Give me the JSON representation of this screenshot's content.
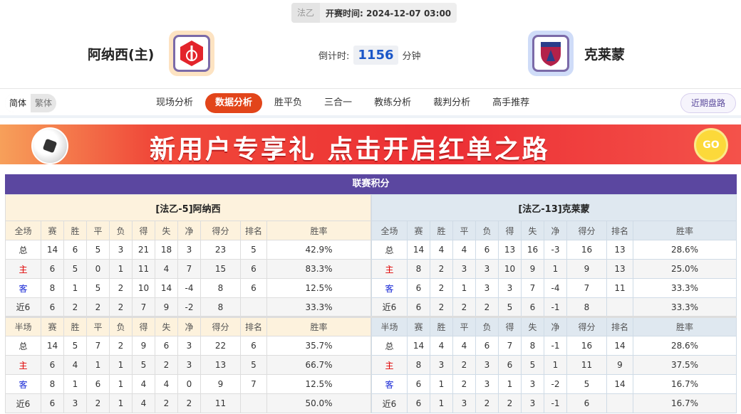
{
  "match": {
    "league": "法乙",
    "kickoff_label": "开赛时间:",
    "kickoff": "2024-12-07 03:00",
    "home": "阿纳西(主)",
    "away": "克莱蒙",
    "countdown_label": "倒计时:",
    "countdown": "1156",
    "countdown_unit": "分钟"
  },
  "lang": {
    "simplified": "简体",
    "traditional": "繁体"
  },
  "tabs": [
    "现场分析",
    "数据分析",
    "胜平负",
    "三合一",
    "教练分析",
    "裁判分析",
    "高手推荐"
  ],
  "active_tab": "数据分析",
  "recent_button": "近期盘路",
  "banner": {
    "text": "新用户专享礼 点击开启红单之路",
    "go": "GO"
  },
  "section_title": "联赛积分",
  "columns_full": [
    "全场",
    "赛",
    "胜",
    "平",
    "负",
    "得",
    "失",
    "净",
    "得分",
    "排名",
    "胜率"
  ],
  "columns_half": [
    "半场",
    "赛",
    "胜",
    "平",
    "负",
    "得",
    "失",
    "净",
    "得分",
    "排名",
    "胜率"
  ],
  "home_table": {
    "title": "[法乙-5]阿纳西",
    "full": [
      [
        "总",
        "14",
        "6",
        "5",
        "3",
        "21",
        "18",
        "3",
        "23",
        "5",
        "42.9%"
      ],
      [
        "主",
        "6",
        "5",
        "0",
        "1",
        "11",
        "4",
        "7",
        "15",
        "6",
        "83.3%"
      ],
      [
        "客",
        "8",
        "1",
        "5",
        "2",
        "10",
        "14",
        "-4",
        "8",
        "6",
        "12.5%"
      ],
      [
        "近6",
        "6",
        "2",
        "2",
        "2",
        "7",
        "9",
        "-2",
        "8",
        "",
        "33.3%"
      ]
    ],
    "half": [
      [
        "总",
        "14",
        "5",
        "7",
        "2",
        "9",
        "6",
        "3",
        "22",
        "6",
        "35.7%"
      ],
      [
        "主",
        "6",
        "4",
        "1",
        "1",
        "5",
        "2",
        "3",
        "13",
        "5",
        "66.7%"
      ],
      [
        "客",
        "8",
        "1",
        "6",
        "1",
        "4",
        "4",
        "0",
        "9",
        "7",
        "12.5%"
      ],
      [
        "近6",
        "6",
        "3",
        "2",
        "1",
        "4",
        "2",
        "2",
        "11",
        "",
        "50.0%"
      ]
    ]
  },
  "away_table": {
    "title": "[法乙-13]克莱蒙",
    "full": [
      [
        "总",
        "14",
        "4",
        "4",
        "6",
        "13",
        "16",
        "-3",
        "16",
        "13",
        "28.6%"
      ],
      [
        "主",
        "8",
        "2",
        "3",
        "3",
        "10",
        "9",
        "1",
        "9",
        "13",
        "25.0%"
      ],
      [
        "客",
        "6",
        "2",
        "1",
        "3",
        "3",
        "7",
        "-4",
        "7",
        "11",
        "33.3%"
      ],
      [
        "近6",
        "6",
        "2",
        "2",
        "2",
        "5",
        "6",
        "-1",
        "8",
        "",
        "33.3%"
      ]
    ],
    "half": [
      [
        "总",
        "14",
        "4",
        "4",
        "6",
        "7",
        "8",
        "-1",
        "16",
        "14",
        "28.6%"
      ],
      [
        "主",
        "8",
        "3",
        "2",
        "3",
        "6",
        "5",
        "1",
        "11",
        "9",
        "37.5%"
      ],
      [
        "客",
        "6",
        "1",
        "2",
        "3",
        "1",
        "3",
        "-2",
        "5",
        "14",
        "16.7%"
      ],
      [
        "近6",
        "6",
        "1",
        "3",
        "2",
        "2",
        "3",
        "-1",
        "6",
        "",
        "16.7%"
      ]
    ]
  }
}
